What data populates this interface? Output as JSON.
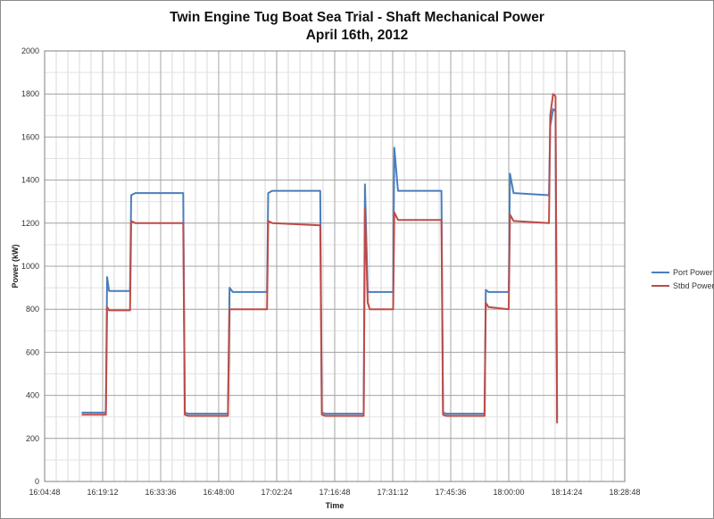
{
  "chart_data": {
    "type": "line",
    "title": "Twin Engine Tug Boat Sea Trial - Shaft Mechanical Power",
    "subtitle": "April 16th, 2012",
    "xlabel": "Time",
    "ylabel": "Power (kW)",
    "ylim": [
      0,
      2000
    ],
    "yticks": [
      0,
      200,
      400,
      600,
      800,
      1000,
      1200,
      1400,
      1600,
      1800,
      2000
    ],
    "xlim_minutes": [
      964.8,
      1108.8
    ],
    "xticks": [
      {
        "label": "16:04:48",
        "minutes": 964.8
      },
      {
        "label": "16:19:12",
        "minutes": 979.2
      },
      {
        "label": "16:33:36",
        "minutes": 993.6
      },
      {
        "label": "16:48:00",
        "minutes": 1008.0
      },
      {
        "label": "17:02:24",
        "minutes": 1022.4
      },
      {
        "label": "17:16:48",
        "minutes": 1036.8
      },
      {
        "label": "17:31:12",
        "minutes": 1051.2
      },
      {
        "label": "17:45:36",
        "minutes": 1065.6
      },
      {
        "label": "18:00:00",
        "minutes": 1080.0
      },
      {
        "label": "18:14:24",
        "minutes": 1094.4
      },
      {
        "label": "18:28:48",
        "minutes": 1108.8
      }
    ],
    "grid": true,
    "legend_position": "right",
    "series": [
      {
        "name": "Port Power",
        "color": "#4a7ebb",
        "x": [
          974.0,
          980.0,
          980.3,
          980.8,
          986.0,
          986.3,
          987.3,
          999.2,
          999.6,
          1000.5,
          1010.3,
          1010.7,
          1011.5,
          1020.0,
          1020.3,
          1021.3,
          1033.2,
          1033.6,
          1034.5,
          1044.0,
          1044.3,
          1045.0,
          1045.5,
          1051.3,
          1051.6,
          1052.5,
          1063.3,
          1063.7,
          1064.5,
          1074.0,
          1074.3,
          1075.0,
          1080.0,
          1080.3,
          1081.2,
          1090.0,
          1090.3,
          1091.0,
          1091.6,
          1092.0
        ],
        "y": [
          320,
          320,
          950,
          885,
          885,
          1330,
          1340,
          1340,
          320,
          315,
          315,
          900,
          880,
          880,
          1340,
          1350,
          1350,
          320,
          315,
          315,
          1380,
          880,
          880,
          880,
          1550,
          1350,
          1350,
          320,
          315,
          315,
          890,
          880,
          880,
          1430,
          1340,
          1330,
          1650,
          1730,
          1720,
          290
        ],
        "values_approx": true
      },
      {
        "name": "Stbd Power",
        "color": "#be4b48",
        "x": [
          974.0,
          980.0,
          980.3,
          980.8,
          986.0,
          986.3,
          987.3,
          999.2,
          999.6,
          1000.5,
          1010.3,
          1010.7,
          1011.5,
          1020.0,
          1020.3,
          1021.3,
          1033.2,
          1033.6,
          1034.5,
          1044.0,
          1044.3,
          1045.0,
          1045.5,
          1051.3,
          1051.6,
          1052.5,
          1063.3,
          1063.7,
          1064.5,
          1074.0,
          1074.3,
          1075.0,
          1080.0,
          1080.3,
          1081.2,
          1090.0,
          1090.3,
          1091.0,
          1091.6,
          1092.0
        ],
        "y": [
          310,
          310,
          810,
          795,
          795,
          1210,
          1200,
          1200,
          310,
          305,
          305,
          800,
          800,
          800,
          1210,
          1200,
          1190,
          310,
          305,
          305,
          1270,
          830,
          800,
          800,
          1250,
          1215,
          1215,
          310,
          305,
          305,
          830,
          810,
          800,
          1240,
          1210,
          1200,
          1700,
          1800,
          1790,
          270
        ],
        "values_approx": true
      }
    ]
  }
}
